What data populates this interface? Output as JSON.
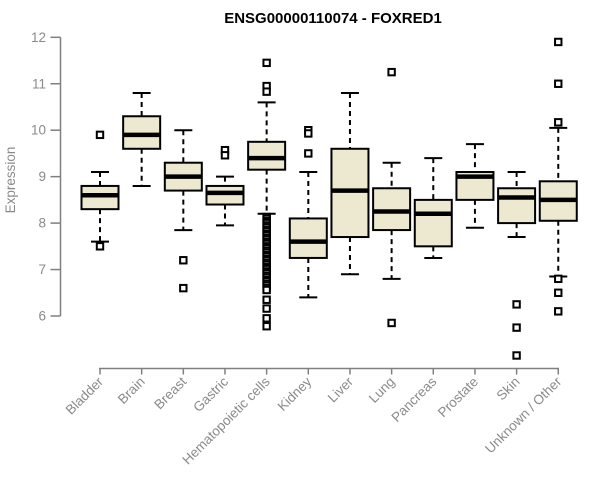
{
  "title": "ENSG00000110074 - FOXRED1",
  "chart_data": {
    "type": "boxplot",
    "title": "ENSG00000110074 - FOXRED1",
    "xlabel": "",
    "ylabel": "Expression",
    "ylim": [
      6,
      12
    ],
    "yticks": [
      6,
      7,
      8,
      9,
      10,
      11,
      12
    ],
    "grid": false,
    "legend": "none",
    "box_fill_color": "#ede8d0",
    "box_border_color": "#000000",
    "axis_line_color": "#808080",
    "axis_text_color": "#8a8a8a",
    "title_color": "#000000",
    "categories": [
      "Bladder",
      "Brain",
      "Breast",
      "Gastric",
      "Hematopoietic cells",
      "Kidney",
      "Liver",
      "Lung",
      "Pancreas",
      "Prostate",
      "Skin",
      "Unknown / Other"
    ],
    "boxes": [
      {
        "category": "Bladder",
        "whisker_low": 7.6,
        "q1": 8.3,
        "median": 8.6,
        "q3": 8.8,
        "whisker_high": 9.1,
        "outliers": [
          9.9,
          7.5
        ]
      },
      {
        "category": "Brain",
        "whisker_low": 8.8,
        "q1": 9.6,
        "median": 9.9,
        "q3": 10.3,
        "whisker_high": 10.8,
        "outliers": []
      },
      {
        "category": "Breast",
        "whisker_low": 7.85,
        "q1": 8.7,
        "median": 9.0,
        "q3": 9.3,
        "whisker_high": 10.0,
        "outliers": [
          7.2,
          6.6
        ]
      },
      {
        "category": "Gastric",
        "whisker_low": 7.95,
        "q1": 8.4,
        "median": 8.65,
        "q3": 8.8,
        "whisker_high": 9.0,
        "outliers": [
          9.57,
          9.46
        ]
      },
      {
        "category": "Hematopoietic cells",
        "whisker_low": 8.2,
        "q1": 9.15,
        "median": 9.4,
        "q3": 9.75,
        "whisker_high": 10.6,
        "outliers": [
          11.45,
          10.95,
          10.83,
          8.13,
          8.09,
          8.04,
          8.0,
          7.95,
          7.91,
          7.86,
          7.82,
          7.77,
          7.73,
          7.68,
          7.64,
          7.59,
          7.55,
          7.5,
          7.46,
          7.41,
          7.37,
          7.32,
          7.28,
          7.23,
          7.19,
          7.14,
          7.1,
          7.05,
          7.01,
          6.96,
          6.92,
          6.87,
          6.83,
          6.78,
          6.74,
          6.69,
          6.65,
          6.6,
          6.56,
          6.35,
          6.16,
          5.95,
          5.78
        ]
      },
      {
        "category": "Kidney",
        "whisker_low": 6.4,
        "q1": 7.25,
        "median": 7.6,
        "q3": 8.1,
        "whisker_high": 9.1,
        "outliers": [
          10.0,
          9.93,
          9.5
        ]
      },
      {
        "category": "Liver",
        "whisker_low": 6.9,
        "q1": 7.7,
        "median": 8.7,
        "q3": 9.6,
        "whisker_high": 10.8,
        "outliers": []
      },
      {
        "category": "Lung",
        "whisker_low": 6.8,
        "q1": 7.85,
        "median": 8.25,
        "q3": 8.75,
        "whisker_high": 9.3,
        "outliers": [
          11.25,
          5.85
        ]
      },
      {
        "category": "Pancreas",
        "whisker_low": 7.25,
        "q1": 7.5,
        "median": 8.2,
        "q3": 8.5,
        "whisker_high": 9.4,
        "outliers": []
      },
      {
        "category": "Prostate",
        "whisker_low": 7.9,
        "q1": 8.5,
        "median": 9.0,
        "q3": 9.1,
        "whisker_high": 9.7,
        "outliers": []
      },
      {
        "category": "Skin",
        "whisker_low": 7.7,
        "q1": 8.0,
        "median": 8.55,
        "q3": 8.75,
        "whisker_high": 9.1,
        "outliers": [
          6.25,
          5.75,
          5.15
        ]
      },
      {
        "category": "Unknown / Other",
        "whisker_low": 6.85,
        "q1": 8.05,
        "median": 8.5,
        "q3": 8.9,
        "whisker_high": 10.05,
        "outliers": [
          11.9,
          11.0,
          10.17,
          6.8,
          6.5,
          6.1
        ]
      }
    ]
  }
}
